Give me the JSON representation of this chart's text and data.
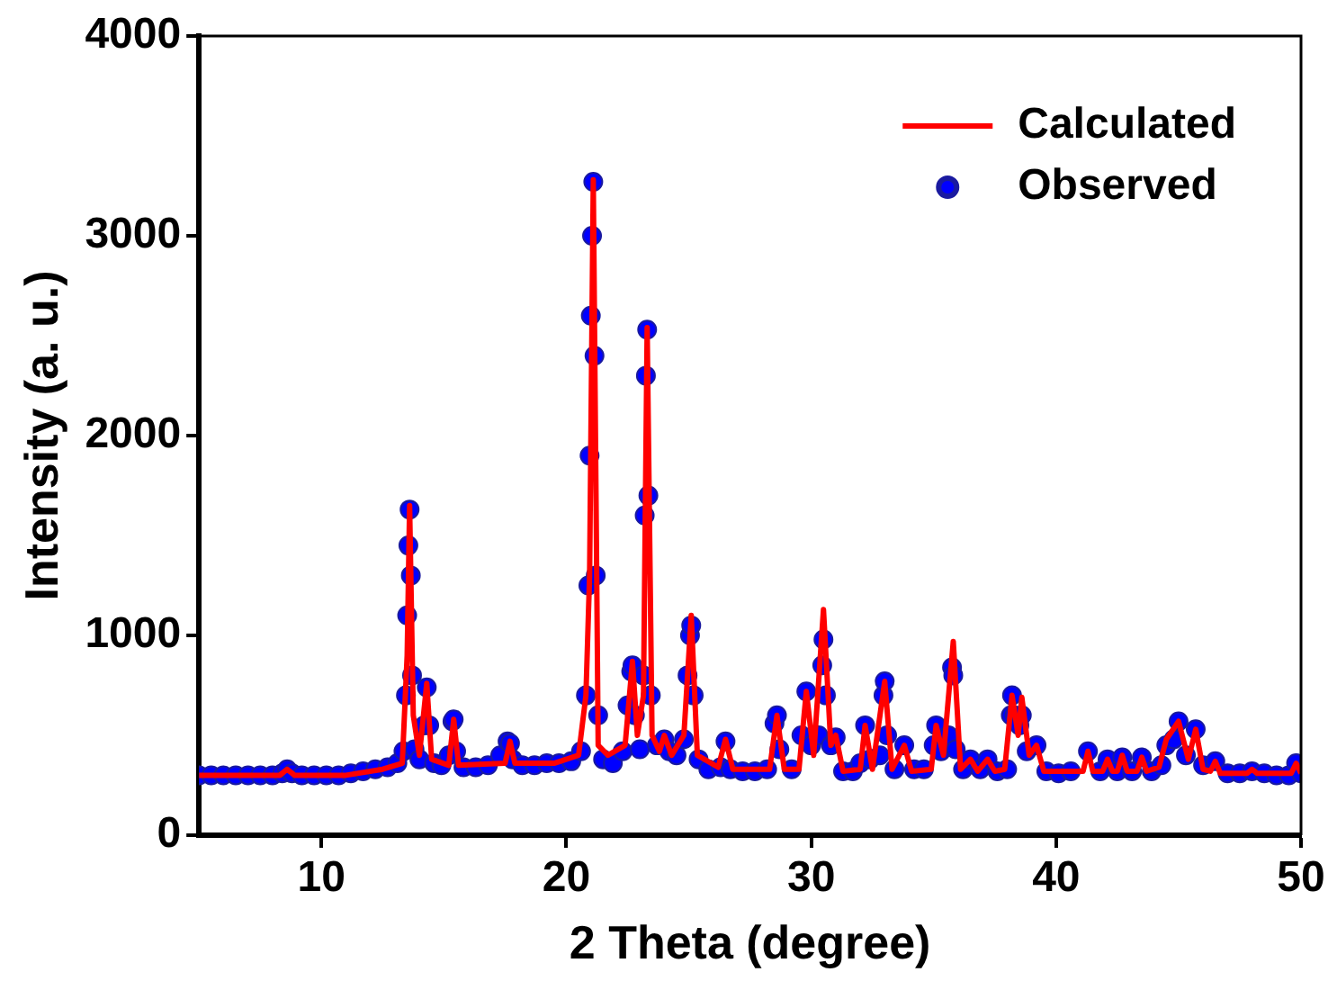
{
  "chart_data": {
    "type": "line",
    "xlabel": "2 Theta (degree)",
    "ylabel": "Intensity (a. u.)",
    "xlim": [
      5,
      50
    ],
    "xticks": [
      10,
      20,
      30,
      40,
      50
    ],
    "ylim": [
      0,
      4000
    ],
    "yticks": [
      0,
      1000,
      2000,
      3000,
      4000
    ],
    "grid": false,
    "legend": "top right",
    "series": [
      {
        "name": "Calculated",
        "type": "line",
        "color": "#ff0000",
        "marker": "none",
        "line_style": "solid",
        "x": [
          5,
          8.3,
          8.6,
          8.9,
          11,
          12.5,
          13.3,
          13.5,
          13.6,
          13.75,
          14.0,
          14.3,
          14.5,
          15.2,
          15.4,
          15.6,
          17.5,
          17.7,
          17.9,
          19.5,
          20.5,
          20.8,
          20.95,
          21.1,
          21.3,
          21.7,
          22.4,
          22.7,
          22.9,
          23.15,
          23.3,
          23.5,
          23.8,
          24.0,
          24.3,
          24.8,
          25.1,
          25.35,
          26.2,
          26.5,
          26.8,
          28.3,
          28.6,
          28.9,
          29.5,
          29.8,
          30.1,
          30.5,
          30.8,
          31.0,
          31.3,
          32.0,
          32.2,
          32.5,
          33.0,
          33.3,
          33.8,
          34.1,
          34.9,
          35.1,
          35.4,
          35.8,
          36.1,
          36.5,
          36.8,
          37.2,
          37.5,
          37.9,
          38.2,
          38.45,
          38.6,
          38.9,
          39.2,
          39.5,
          41.1,
          41.3,
          41.5,
          41.9,
          42.1,
          42.3,
          42.5,
          42.7,
          42.9,
          43.3,
          43.5,
          43.7,
          44.2,
          44.5,
          45.0,
          45.4,
          45.7,
          46.0,
          46.3,
          46.5,
          46.7,
          47.8,
          48.0,
          48.2,
          49.6,
          49.8,
          50
        ],
        "values": [
          300,
          300,
          330,
          300,
          300,
          330,
          360,
          900,
          1650,
          600,
          400,
          760,
          380,
          350,
          580,
          350,
          360,
          470,
          360,
          360,
          400,
          700,
          1300,
          3280,
          450,
          400,
          450,
          870,
          500,
          700,
          2540,
          500,
          420,
          500,
          400,
          500,
          1100,
          400,
          340,
          480,
          330,
          330,
          600,
          330,
          330,
          720,
          400,
          1130,
          450,
          500,
          320,
          330,
          550,
          330,
          770,
          330,
          450,
          320,
          330,
          550,
          400,
          970,
          330,
          380,
          320,
          380,
          320,
          330,
          700,
          500,
          690,
          400,
          450,
          320,
          320,
          420,
          320,
          320,
          380,
          320,
          320,
          400,
          320,
          320,
          390,
          320,
          340,
          480,
          570,
          380,
          530,
          330,
          320,
          370,
          310,
          310,
          330,
          310,
          310,
          360,
          310
        ]
      },
      {
        "name": "Observed",
        "type": "scatter",
        "color": "#0000ff",
        "marker": "circle",
        "x": [
          5,
          5.5,
          6,
          6.5,
          7,
          7.5,
          8,
          8.4,
          8.6,
          8.8,
          9.2,
          9.7,
          10.2,
          10.7,
          11.2,
          11.7,
          12.2,
          12.7,
          13.1,
          13.35,
          13.45,
          13.5,
          13.55,
          13.6,
          13.65,
          13.7,
          13.8,
          14.0,
          14.2,
          14.3,
          14.4,
          14.6,
          14.9,
          15.2,
          15.35,
          15.4,
          15.5,
          15.8,
          16.3,
          16.8,
          17.3,
          17.6,
          17.7,
          17.8,
          18.2,
          18.7,
          19.2,
          19.7,
          20.2,
          20.6,
          20.8,
          20.9,
          20.95,
          21.0,
          21.05,
          21.1,
          21.15,
          21.2,
          21.3,
          21.5,
          21.9,
          22.3,
          22.5,
          22.65,
          22.7,
          22.8,
          23.0,
          23.15,
          23.2,
          23.25,
          23.3,
          23.35,
          23.45,
          23.7,
          24.0,
          24.2,
          24.5,
          24.8,
          24.95,
          25.05,
          25.1,
          25.2,
          25.4,
          25.8,
          26.3,
          26.5,
          26.7,
          27.2,
          27.7,
          28.2,
          28.5,
          28.6,
          28.7,
          29.2,
          29.6,
          29.8,
          30.0,
          30.3,
          30.45,
          30.5,
          30.6,
          30.8,
          31.0,
          31.3,
          31.7,
          32.0,
          32.2,
          32.4,
          32.8,
          32.95,
          33.0,
          33.1,
          33.4,
          33.8,
          34.2,
          34.6,
          35.0,
          35.1,
          35.3,
          35.6,
          35.75,
          35.8,
          35.9,
          36.2,
          36.5,
          36.9,
          37.2,
          37.6,
          38.0,
          38.15,
          38.2,
          38.3,
          38.5,
          38.6,
          38.8,
          39.2,
          39.6,
          40.1,
          40.6,
          41.3,
          41.8,
          42.1,
          42.5,
          42.7,
          43.1,
          43.5,
          43.9,
          44.3,
          44.5,
          44.8,
          45.0,
          45.3,
          45.7,
          46.0,
          46.5,
          47.0,
          47.5,
          48.0,
          48.5,
          49.0,
          49.5,
          49.8,
          50
        ],
        "values": [
          300,
          300,
          300,
          300,
          300,
          300,
          300,
          310,
          330,
          310,
          300,
          300,
          300,
          300,
          310,
          320,
          330,
          340,
          360,
          420,
          700,
          1100,
          1450,
          1630,
          1300,
          800,
          430,
          380,
          550,
          740,
          550,
          360,
          350,
          400,
          570,
          580,
          420,
          340,
          340,
          350,
          400,
          470,
          460,
          380,
          350,
          350,
          360,
          360,
          370,
          420,
          700,
          1250,
          1900,
          2600,
          3000,
          3270,
          2400,
          1300,
          600,
          380,
          360,
          420,
          650,
          820,
          850,
          600,
          430,
          800,
          1600,
          2300,
          2530,
          1700,
          700,
          450,
          480,
          420,
          400,
          480,
          800,
          1000,
          1050,
          700,
          380,
          330,
          340,
          470,
          330,
          320,
          320,
          330,
          560,
          600,
          430,
          330,
          500,
          720,
          450,
          500,
          850,
          980,
          700,
          450,
          490,
          320,
          320,
          360,
          550,
          380,
          400,
          700,
          770,
          500,
          330,
          450,
          330,
          330,
          450,
          550,
          420,
          500,
          840,
          800,
          430,
          330,
          380,
          330,
          380,
          320,
          330,
          600,
          700,
          600,
          550,
          600,
          420,
          450,
          320,
          310,
          320,
          420,
          320,
          380,
          320,
          390,
          320,
          390,
          320,
          350,
          450,
          480,
          570,
          400,
          530,
          350,
          370,
          310,
          310,
          320,
          310,
          300,
          300,
          360,
          310
        ]
      }
    ]
  }
}
